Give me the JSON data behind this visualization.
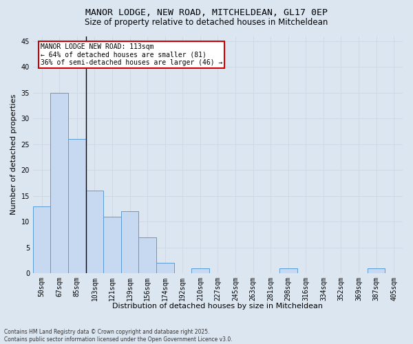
{
  "title1": "MANOR LODGE, NEW ROAD, MITCHELDEAN, GL17 0EP",
  "title2": "Size of property relative to detached houses in Mitcheldean",
  "xlabel": "Distribution of detached houses by size in Mitcheldean",
  "ylabel": "Number of detached properties",
  "categories": [
    "50sqm",
    "67sqm",
    "85sqm",
    "103sqm",
    "121sqm",
    "139sqm",
    "156sqm",
    "174sqm",
    "192sqm",
    "210sqm",
    "227sqm",
    "245sqm",
    "263sqm",
    "281sqm",
    "298sqm",
    "316sqm",
    "334sqm",
    "352sqm",
    "369sqm",
    "387sqm",
    "405sqm"
  ],
  "values": [
    13,
    35,
    26,
    16,
    11,
    12,
    7,
    2,
    0,
    1,
    0,
    0,
    0,
    0,
    1,
    0,
    0,
    0,
    0,
    1,
    0
  ],
  "bar_color": "#c6d9f0",
  "bar_edge_color": "#5b9bd5",
  "grid_color": "#d0d8e8",
  "background_color": "#dce6f1",
  "annotation_text": "MANOR LODGE NEW ROAD: 113sqm\n← 64% of detached houses are smaller (81)\n36% of semi-detached houses are larger (46) →",
  "annotation_box_color": "#ffffff",
  "annotation_box_edge": "#cc0000",
  "vline_x_index": 2.5,
  "ylim": [
    0,
    46
  ],
  "yticks": [
    0,
    5,
    10,
    15,
    20,
    25,
    30,
    35,
    40,
    45
  ],
  "footer": "Contains HM Land Registry data © Crown copyright and database right 2025.\nContains public sector information licensed under the Open Government Licence v3.0.",
  "title1_fontsize": 9.5,
  "title2_fontsize": 8.5,
  "tick_fontsize": 7,
  "label_fontsize": 8,
  "annotation_fontsize": 7,
  "footer_fontsize": 5.5
}
